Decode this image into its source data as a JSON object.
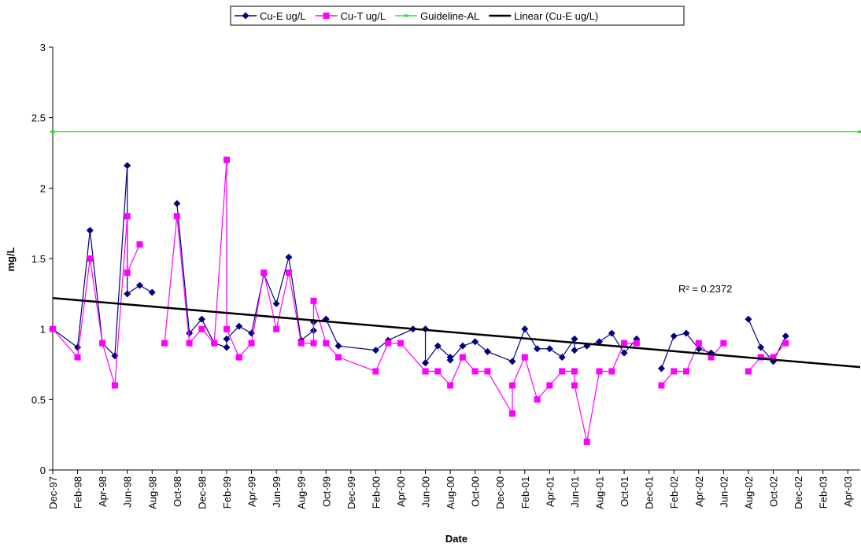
{
  "chart_data": {
    "type": "line",
    "x_label": "Date",
    "y_label": "mg/L",
    "xlim": [
      "1997-12",
      "2003-05"
    ],
    "ylim": [
      0,
      3
    ],
    "yticks": [
      0,
      0.5,
      1,
      1.5,
      2,
      2.5,
      3
    ],
    "xticks": [
      {
        "value": "1997-12",
        "label": "Dec-97"
      },
      {
        "value": "1998-02",
        "label": "Feb-98"
      },
      {
        "value": "1998-04",
        "label": "Apr-98"
      },
      {
        "value": "1998-06",
        "label": "Jun-98"
      },
      {
        "value": "1998-08",
        "label": "Aug-98"
      },
      {
        "value": "1998-10",
        "label": "Oct-98"
      },
      {
        "value": "1998-12",
        "label": "Dec-98"
      },
      {
        "value": "1999-02",
        "label": "Feb-99"
      },
      {
        "value": "1999-04",
        "label": "Apr-99"
      },
      {
        "value": "1999-06",
        "label": "Jun-99"
      },
      {
        "value": "1999-08",
        "label": "Aug-99"
      },
      {
        "value": "1999-10",
        "label": "Oct-99"
      },
      {
        "value": "1999-12",
        "label": "Dec-99"
      },
      {
        "value": "2000-02",
        "label": "Feb-00"
      },
      {
        "value": "2000-04",
        "label": "Apr-00"
      },
      {
        "value": "2000-06",
        "label": "Jun-00"
      },
      {
        "value": "2000-08",
        "label": "Aug-00"
      },
      {
        "value": "2000-10",
        "label": "Oct-00"
      },
      {
        "value": "2000-12",
        "label": "Dec-00"
      },
      {
        "value": "2001-02",
        "label": "Feb-01"
      },
      {
        "value": "2001-04",
        "label": "Apr-01"
      },
      {
        "value": "2001-06",
        "label": "Jun-01"
      },
      {
        "value": "2001-08",
        "label": "Aug-01"
      },
      {
        "value": "2001-10",
        "label": "Oct-01"
      },
      {
        "value": "2001-12",
        "label": "Dec-01"
      },
      {
        "value": "2002-02",
        "label": "Feb-02"
      },
      {
        "value": "2002-04",
        "label": "Apr-02"
      },
      {
        "value": "2002-06",
        "label": "Jun-02"
      },
      {
        "value": "2002-08",
        "label": "Aug-02"
      },
      {
        "value": "2002-10",
        "label": "Oct-02"
      },
      {
        "value": "2002-12",
        "label": "Dec-02"
      },
      {
        "value": "2003-02",
        "label": "Feb-03"
      },
      {
        "value": "2003-04",
        "label": "Apr-03"
      }
    ],
    "legend": "top",
    "annotation": "R² = 0.2372",
    "series": [
      {
        "name": "Cu-E ug/L",
        "color": "#000080",
        "marker": "diamond",
        "x": [
          "1997-12",
          "1998-02",
          "1998-03",
          "1998-04",
          "1998-05",
          "1998-06",
          "1998-06",
          "1998-07",
          "1998-08",
          "1998-09",
          "1998-10",
          "1998-11",
          "1998-12",
          "1999-01",
          "1999-02",
          "1999-02",
          "1999-03",
          "1999-04",
          "1999-05",
          "1999-06",
          "1999-07",
          "1999-08",
          "1999-09",
          "1999-09",
          "1999-10",
          "1999-11",
          "2000-02",
          "2000-03",
          "2000-05",
          "2000-06",
          "2000-06",
          "2000-07",
          "2000-08",
          "2000-08",
          "2000-09",
          "2000-10",
          "2000-11",
          "2001-01",
          "2001-02",
          "2001-03",
          "2001-04",
          "2001-05",
          "2001-06",
          "2001-06",
          "2001-07",
          "2001-08",
          "2001-09",
          "2001-10",
          "2001-11",
          "2001-12",
          "2002-01",
          "2002-02",
          "2002-03",
          "2002-04",
          "2002-05",
          "2002-07",
          "2002-08",
          "2002-09",
          "2002-10",
          "2002-11"
        ],
        "values": [
          1.0,
          0.87,
          1.7,
          0.9,
          0.81,
          2.16,
          1.25,
          1.31,
          1.26,
          null,
          1.89,
          0.97,
          1.07,
          0.9,
          0.87,
          0.93,
          1.02,
          0.97,
          1.39,
          1.18,
          1.51,
          0.92,
          0.99,
          1.05,
          1.07,
          0.88,
          0.85,
          0.92,
          1.0,
          1.0,
          0.76,
          0.88,
          0.8,
          0.78,
          0.88,
          0.91,
          0.84,
          0.77,
          1.0,
          0.86,
          0.86,
          0.8,
          0.93,
          0.85,
          0.88,
          0.91,
          0.97,
          0.83,
          0.93,
          null,
          0.72,
          0.95,
          0.97,
          0.86,
          0.83,
          null,
          1.07,
          0.87,
          0.77,
          0.95
        ]
      },
      {
        "name": "Cu-T ug/L",
        "color": "#ff00ff",
        "marker": "square",
        "x": [
          "1997-12",
          "1998-02",
          "1998-03",
          "1998-04",
          "1998-05",
          "1998-06",
          "1998-06",
          "1998-07",
          "1998-08",
          "1998-09",
          "1998-10",
          "1998-11",
          "1998-12",
          "1999-01",
          "1999-02",
          "1999-02",
          "1999-03",
          "1999-03",
          "1999-04",
          "1999-05",
          "1999-06",
          "1999-07",
          "1999-08",
          "1999-09",
          "1999-09",
          "1999-10",
          "1999-11",
          "2000-02",
          "2000-03",
          "2000-04",
          "2000-06",
          "2000-06",
          "2000-07",
          "2000-08",
          "2000-09",
          "2000-10",
          "2000-11",
          "2001-01",
          "2001-01",
          "2001-02",
          "2001-03",
          "2001-04",
          "2001-05",
          "2001-06",
          "2001-06",
          "2001-07",
          "2001-08",
          "2001-09",
          "2001-10",
          "2001-11",
          "2001-12",
          "2002-01",
          "2002-02",
          "2002-03",
          "2002-04",
          "2002-05",
          "2002-06",
          "2002-07",
          "2002-08",
          "2002-09",
          "2002-10",
          "2002-11"
        ],
        "values": [
          1.0,
          0.8,
          1.5,
          0.9,
          0.6,
          1.8,
          1.4,
          1.6,
          null,
          0.9,
          1.8,
          0.9,
          1.0,
          0.9,
          2.2,
          1.0,
          0.8,
          0.8,
          0.9,
          1.4,
          1.0,
          1.4,
          0.9,
          0.9,
          1.2,
          0.9,
          0.8,
          0.7,
          0.9,
          0.9,
          0.7,
          0.7,
          0.7,
          0.6,
          0.8,
          0.7,
          0.7,
          0.4,
          0.6,
          0.8,
          0.5,
          0.6,
          0.7,
          0.7,
          0.6,
          0.2,
          0.7,
          0.7,
          0.9,
          0.9,
          null,
          0.6,
          0.7,
          0.7,
          0.9,
          0.8,
          0.9,
          null,
          0.7,
          0.8,
          0.8,
          0.9
        ]
      },
      {
        "name": "Guideline-AL",
        "color": "#33dd33",
        "marker": "dash",
        "x": [
          "1997-12",
          "2003-05"
        ],
        "values": [
          2.4,
          2.4
        ]
      },
      {
        "name": "Linear (Cu-E ug/L)",
        "color": "#000000",
        "marker": "none",
        "x": [
          "1997-12",
          "2003-05"
        ],
        "values": [
          1.22,
          0.73
        ]
      }
    ]
  }
}
